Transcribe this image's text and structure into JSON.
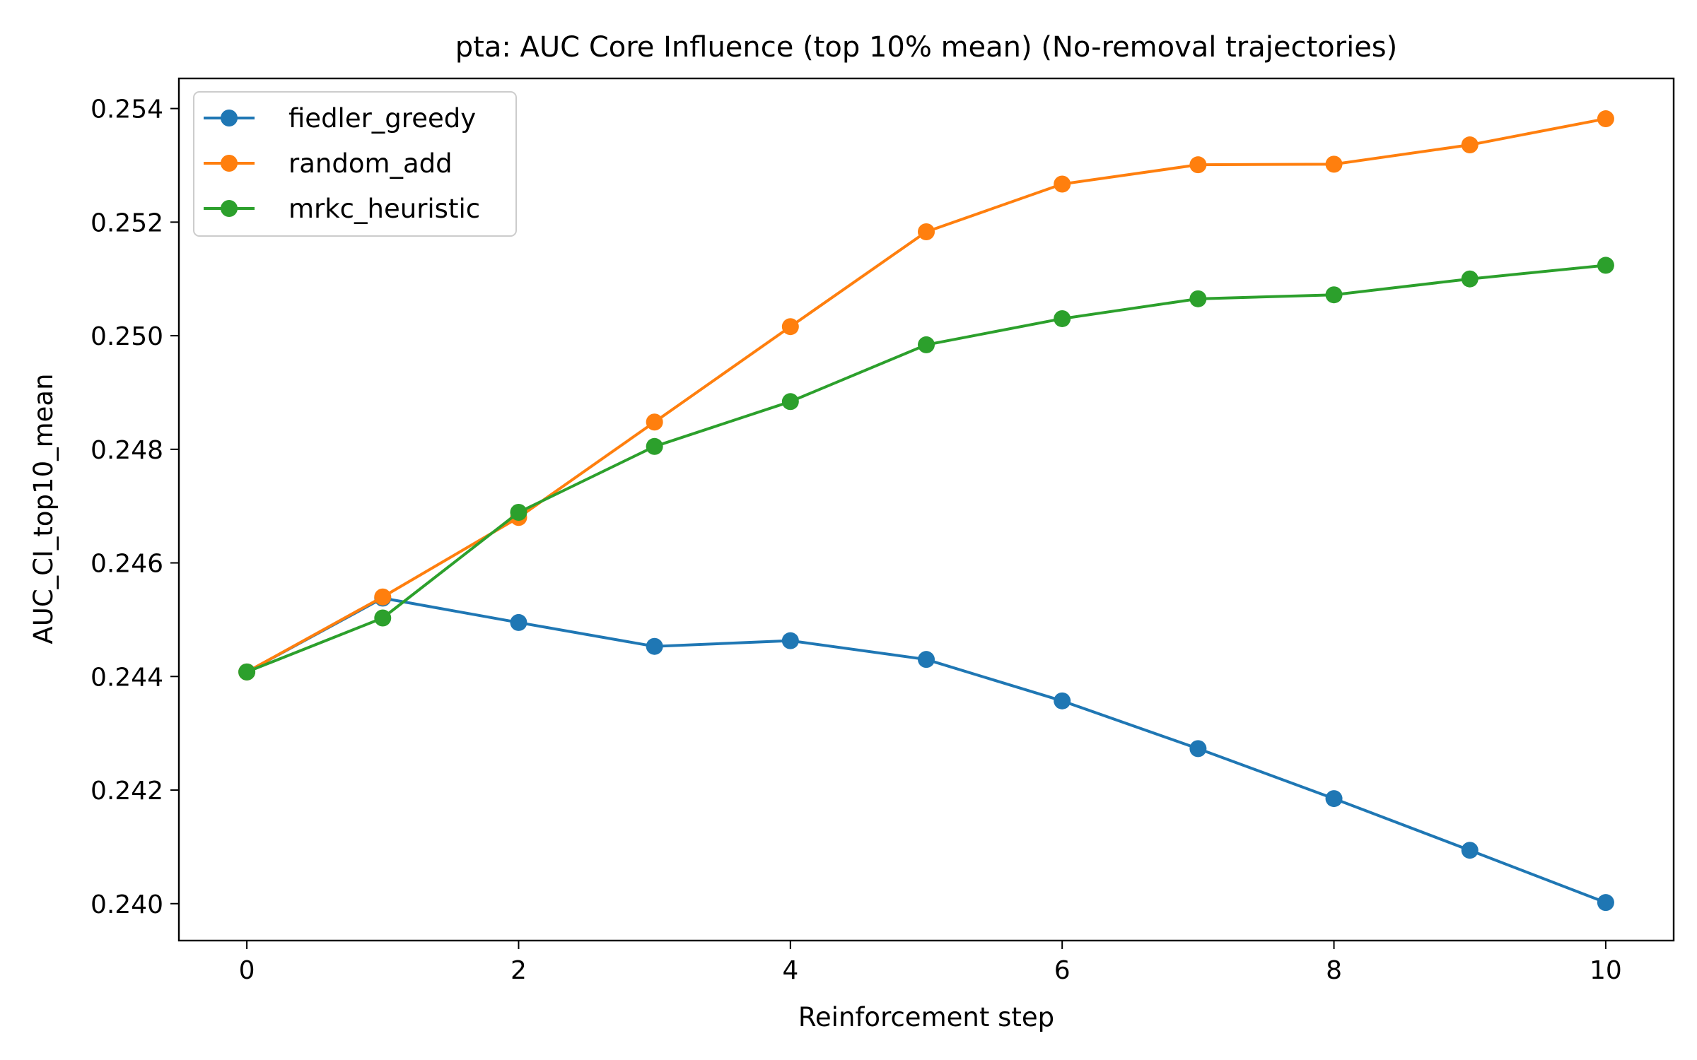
{
  "chart_data": {
    "type": "line",
    "title": "pta: AUC Core Influence (top 10% mean) (No-removal trajectories)",
    "xlabel": "Reinforcement step",
    "ylabel": "AUC_CI_top10_mean",
    "xlim": [
      -0.5,
      10.5
    ],
    "ylim": [
      0.23935,
      0.25453
    ],
    "xticks": [
      0,
      2,
      4,
      6,
      8,
      10
    ],
    "xtick_labels": [
      "0",
      "2",
      "4",
      "6",
      "8",
      "10"
    ],
    "yticks": [
      0.24,
      0.242,
      0.244,
      0.246,
      0.248,
      0.25,
      0.252,
      0.254
    ],
    "ytick_labels": [
      "0.240",
      "0.242",
      "0.244",
      "0.246",
      "0.248",
      "0.250",
      "0.252",
      "0.254"
    ],
    "grid": false,
    "legend_position": "upper-left",
    "x": [
      0,
      1,
      2,
      3,
      4,
      5,
      6,
      7,
      8,
      9,
      10
    ],
    "series": [
      {
        "name": "fiedler_greedy",
        "color": "#1f77b4",
        "values": [
          0.24408,
          0.24538,
          0.24495,
          0.24453,
          0.24463,
          0.2443,
          0.24357,
          0.24273,
          0.24185,
          0.24094,
          0.24002
        ]
      },
      {
        "name": "random_add",
        "color": "#ff7f0e",
        "values": [
          0.24408,
          0.2454,
          0.2468,
          0.24848,
          0.25016,
          0.25183,
          0.25267,
          0.25301,
          0.25302,
          0.25336,
          0.25382
        ]
      },
      {
        "name": "mrkc_heuristic",
        "color": "#2ca02c",
        "values": [
          0.24408,
          0.24503,
          0.24689,
          0.24805,
          0.24884,
          0.24984,
          0.2503,
          0.25065,
          0.25072,
          0.251,
          0.25124
        ]
      }
    ]
  }
}
